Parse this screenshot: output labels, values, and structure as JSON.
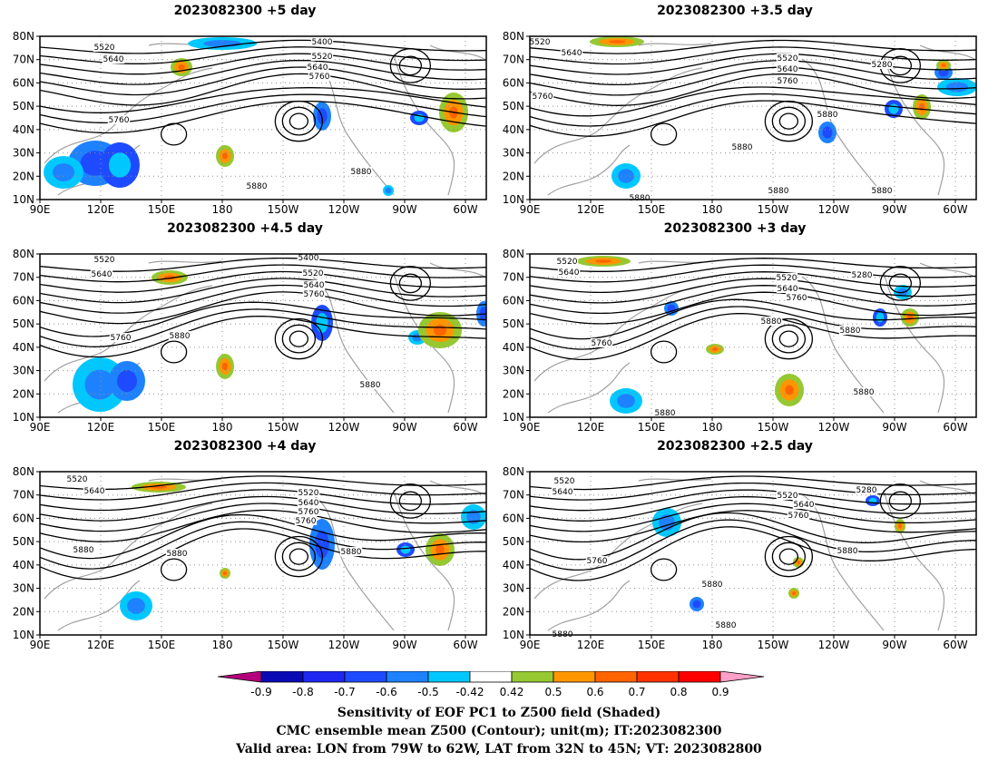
{
  "panels": [
    {
      "title": "2023082300  +5 day",
      "contours": [
        {
          "text": "5520"
        },
        {
          "text": "5640"
        },
        {
          "text": "5400"
        },
        {
          "text": "5520"
        },
        {
          "text": "5640"
        },
        {
          "text": "5760"
        },
        {
          "text": "5760"
        },
        {
          "text": "5880"
        },
        {
          "text": "5880"
        }
      ]
    },
    {
      "title": "2023082300  +3.5 day",
      "contours": [
        {
          "text": "5520"
        },
        {
          "text": "5640"
        },
        {
          "text": "5760"
        },
        {
          "text": "5520"
        },
        {
          "text": "5640"
        },
        {
          "text": "5760"
        },
        {
          "text": "5280"
        },
        {
          "text": "5880"
        },
        {
          "text": "5880"
        },
        {
          "text": "5880"
        },
        {
          "text": "5880"
        },
        {
          "text": "5880"
        }
      ]
    },
    {
      "title": "2023082300  +4.5 day",
      "contours": [
        {
          "text": "5520"
        },
        {
          "text": "5640"
        },
        {
          "text": "5400"
        },
        {
          "text": "5520"
        },
        {
          "text": "5640"
        },
        {
          "text": "5760"
        },
        {
          "text": "5760"
        },
        {
          "text": "5880"
        },
        {
          "text": "5880"
        }
      ]
    },
    {
      "title": "2023082300  +3 day",
      "contours": [
        {
          "text": "5520"
        },
        {
          "text": "5640"
        },
        {
          "text": "5520"
        },
        {
          "text": "5640"
        },
        {
          "text": "5760"
        },
        {
          "text": "5280"
        },
        {
          "text": "5880"
        },
        {
          "text": "5880"
        },
        {
          "text": "5760"
        },
        {
          "text": "5880"
        },
        {
          "text": "5880"
        }
      ]
    },
    {
      "title": "2023082300  +4 day",
      "contours": [
        {
          "text": "5520"
        },
        {
          "text": "5640"
        },
        {
          "text": "5520"
        },
        {
          "text": "5640"
        },
        {
          "text": "5760"
        },
        {
          "text": "5760"
        },
        {
          "text": "5880"
        },
        {
          "text": "5880"
        },
        {
          "text": "5880"
        }
      ]
    },
    {
      "title": "2023082300  +2.5 day",
      "contours": [
        {
          "text": "5520"
        },
        {
          "text": "5640"
        },
        {
          "text": "5520"
        },
        {
          "text": "5640"
        },
        {
          "text": "5760"
        },
        {
          "text": "5280"
        },
        {
          "text": "5760"
        },
        {
          "text": "5880"
        },
        {
          "text": "5880"
        },
        {
          "text": "5880"
        },
        {
          "text": "5880"
        }
      ]
    }
  ],
  "lat_labels": [
    "80N",
    "70N",
    "60N",
    "50N",
    "40N",
    "30N",
    "20N",
    "10N"
  ],
  "lon_labels": [
    "90E",
    "120E",
    "150E",
    "180",
    "150W",
    "120W",
    "90W",
    "60W"
  ],
  "colorbar": {
    "ticks": [
      "-0.9",
      "-0.8",
      "-0.7",
      "-0.6",
      "-0.5",
      "-0.42",
      "0.42",
      "0.5",
      "0.6",
      "0.7",
      "0.8",
      "0.9"
    ],
    "colors": [
      "#0a0ab4",
      "#1e28f0",
      "#1e4bff",
      "#1e82ff",
      "#00c8ff",
      "#ffffff",
      "#96c832",
      "#ff9600",
      "#ff6400",
      "#ff3200",
      "#ff0000"
    ],
    "under_color": "#b4007d",
    "over_color": "#ffa0c8"
  },
  "caption": {
    "line1": "Sensitivity of EOF PC1 to Z500 field (Shaded)",
    "line2": "CMC ensemble mean Z500 (Contour); unit(m); IT:2023082300",
    "line3": "Valid area: LON from 79W to 62W, LAT from 32N to 45N; VT: 2023082800"
  }
}
